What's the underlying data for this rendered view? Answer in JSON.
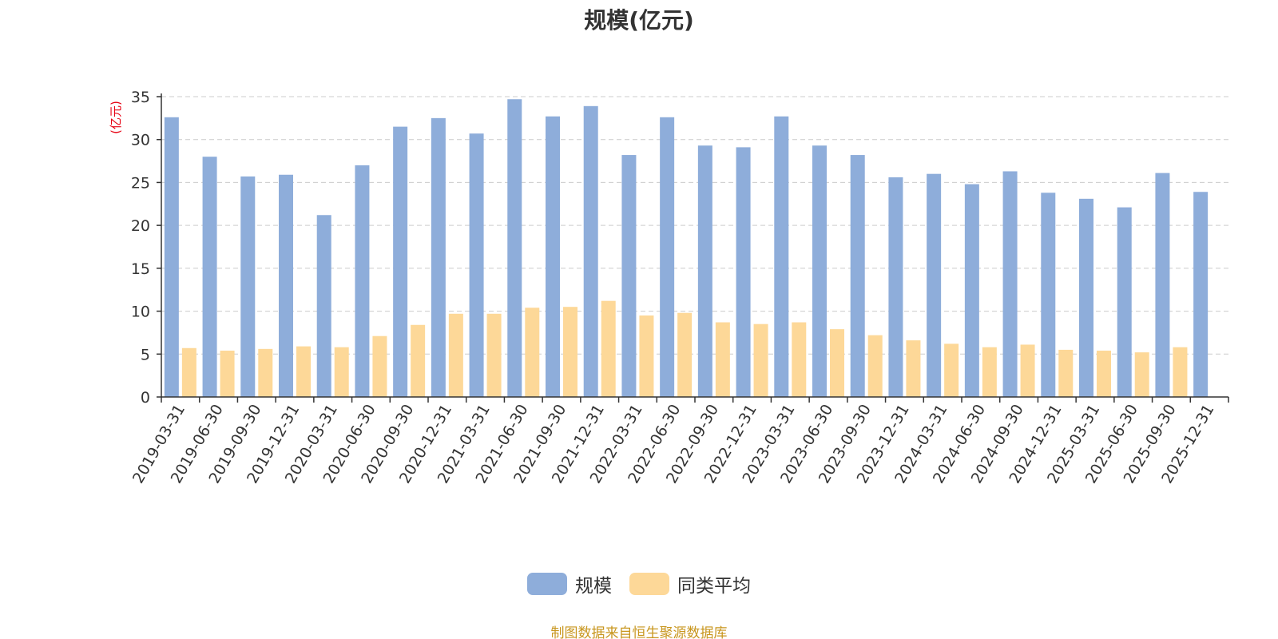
{
  "chart_data": {
    "type": "bar",
    "title": "规模(亿元)",
    "ylabel": "(亿元)",
    "xlabel": "",
    "ylim": [
      0,
      35
    ],
    "yticks": [
      0,
      5,
      10,
      15,
      20,
      25,
      30,
      35
    ],
    "grid": true,
    "legend_position": "bottom-center",
    "categories": [
      "2019-03-31",
      "2019-06-30",
      "2019-09-30",
      "2019-12-31",
      "2020-03-31",
      "2020-06-30",
      "2020-09-30",
      "2020-12-31",
      "2021-03-31",
      "2021-06-30",
      "2021-09-30",
      "2021-12-31",
      "2022-03-31",
      "2022-06-30",
      "2022-09-30",
      "2022-12-31",
      "2023-03-31",
      "2023-06-30",
      "2023-09-30",
      "2023-12-31",
      "2024-03-31",
      "2024-06-30",
      "2024-09-30",
      "2024-12-31",
      "2025-03-31",
      "2025-06-30",
      "2025-09-30",
      "2025-12-31"
    ],
    "series": [
      {
        "name": "规模",
        "color": "#8eadda",
        "values": [
          32.6,
          28.0,
          25.7,
          25.9,
          21.2,
          27.0,
          31.5,
          32.5,
          30.7,
          34.7,
          32.7,
          33.9,
          28.2,
          32.6,
          29.3,
          29.1,
          32.7,
          29.3,
          28.2,
          25.6,
          26.0,
          24.8,
          26.3,
          23.8,
          23.1,
          22.1,
          26.1,
          23.9
        ]
      },
      {
        "name": "同类平均",
        "color": "#fdd898",
        "values": [
          5.7,
          5.4,
          5.6,
          5.9,
          5.8,
          7.1,
          8.4,
          9.7,
          9.7,
          10.4,
          10.5,
          11.2,
          9.5,
          9.8,
          8.7,
          8.5,
          8.7,
          7.9,
          7.2,
          6.6,
          6.2,
          5.8,
          6.1,
          5.5,
          5.4,
          5.2,
          5.8,
          null
        ]
      }
    ]
  },
  "source_note": "制图数据来自恒生聚源数据库"
}
